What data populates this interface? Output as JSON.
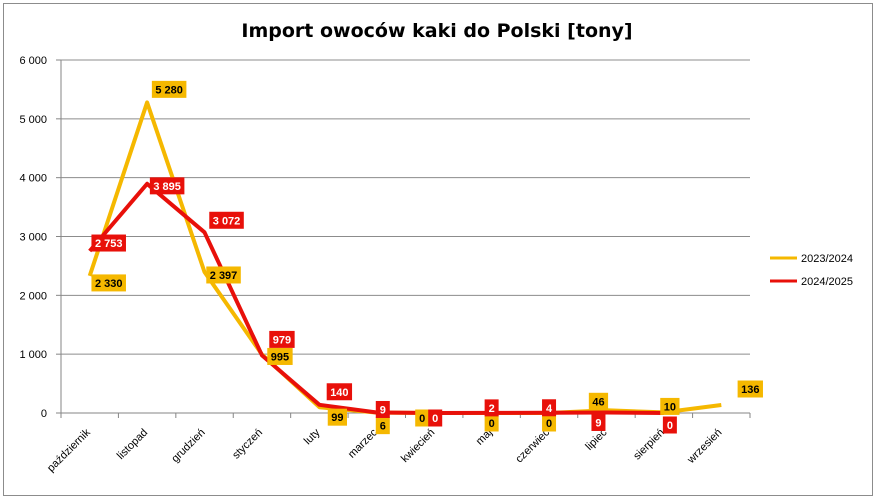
{
  "chart_data": {
    "type": "line",
    "title": "Import owoców kaki do Polski [tony]",
    "xlabel": "",
    "ylabel": "",
    "ylim": [
      0,
      6000
    ],
    "yticks": [
      0,
      1000,
      2000,
      3000,
      4000,
      5000,
      6000
    ],
    "ytick_labels": [
      "0",
      "1 000",
      "2 000",
      "3 000",
      "4 000",
      "5 000",
      "6 000"
    ],
    "grid": true,
    "legend_position": "right",
    "categories": [
      "październik",
      "listopad",
      "grudzień",
      "styczeń",
      "luty",
      "marzec",
      "kwiecień",
      "maj",
      "czerwiec",
      "lipiec",
      "sierpień",
      "wrzesień"
    ],
    "series": [
      {
        "name": "2023/2024",
        "color": "#F5B800",
        "label_color": "#000000",
        "values": [
          2330,
          5280,
          2397,
          995,
          99,
          6,
          0,
          0,
          0,
          46,
          10,
          136
        ],
        "labels": [
          "2 330",
          "5 280",
          "2 397",
          "995",
          "99",
          "6",
          "0",
          "0",
          "0",
          "46",
          "10",
          "136"
        ]
      },
      {
        "name": "2024/2025",
        "color": "#E8100A",
        "label_color": "#FFFFFF",
        "values": [
          2753,
          3895,
          3072,
          979,
          140,
          9,
          0,
          2,
          4,
          9,
          0,
          null
        ],
        "labels": [
          "2 753",
          "3 895",
          "3 072",
          "979",
          "140",
          "9",
          "0",
          "2",
          "4",
          "9",
          "0",
          null
        ]
      }
    ]
  }
}
